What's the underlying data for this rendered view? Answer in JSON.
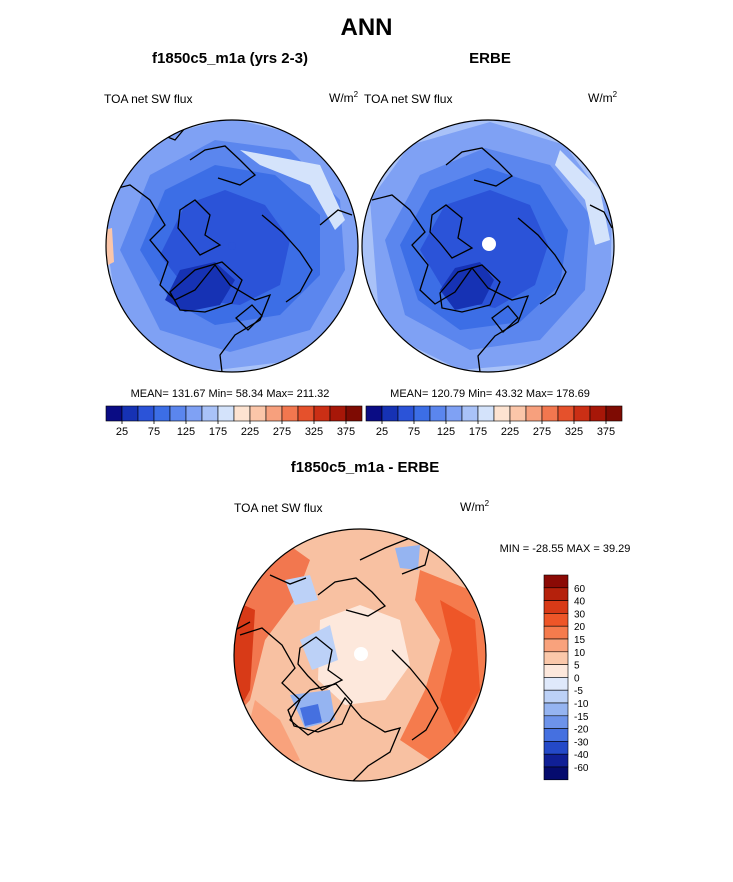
{
  "title": "ANN",
  "panels": [
    {
      "id": "model",
      "title": "f1850c5_m1a (yrs 2-3)",
      "left_label": "TOA net SW flux",
      "units_base": "W/m",
      "units_exp": "2",
      "stats": "MEAN= 131.67  Min=  58.34  Max= 211.32"
    },
    {
      "id": "obs",
      "title": "ERBE",
      "left_label": "TOA net SW flux",
      "units_base": "W/m",
      "units_exp": "2",
      "stats": "MEAN= 120.79  Min=  43.32  Max= 178.69"
    },
    {
      "id": "diff",
      "title": "f1850c5_m1a - ERBE",
      "left_label": "TOA net SW flux",
      "units_base": "W/m",
      "units_exp": "2",
      "stats": "MIN = -28.55 MAX =  39.29"
    }
  ],
  "chart_data": [
    {
      "type": "heatmap",
      "projection": "north-polar-stereographic",
      "title": "f1850c5_m1a (yrs 2-3)",
      "variable": "TOA net SW flux",
      "units": "W/m2",
      "mean": 131.67,
      "min": 58.34,
      "max": 211.32,
      "colorbar": {
        "tick_labels": [
          "25",
          "75",
          "125",
          "175",
          "225",
          "275",
          "325",
          "375"
        ],
        "colors": [
          "#0a0c84",
          "#1632b4",
          "#2b53d8",
          "#3c6ee6",
          "#5b86ee",
          "#7fa1f4",
          "#a9c2f8",
          "#d4e3fb",
          "#fde3d1",
          "#fbc6a9",
          "#f7a07d",
          "#f2774f",
          "#e5512c",
          "#cb2f15",
          "#a71708",
          "#7e0b03"
        ]
      }
    },
    {
      "type": "heatmap",
      "projection": "north-polar-stereographic",
      "title": "ERBE",
      "variable": "TOA net SW flux",
      "units": "W/m2",
      "mean": 120.79,
      "min": 43.32,
      "max": 178.69,
      "colorbar": {
        "tick_labels": [
          "25",
          "75",
          "125",
          "175",
          "225",
          "275",
          "325",
          "375"
        ],
        "colors": [
          "#0a0c84",
          "#1632b4",
          "#2b53d8",
          "#3c6ee6",
          "#5b86ee",
          "#7fa1f4",
          "#a9c2f8",
          "#d4e3fb",
          "#fde3d1",
          "#fbc6a9",
          "#f7a07d",
          "#f2774f",
          "#e5512c",
          "#cb2f15",
          "#a71708",
          "#7e0b03"
        ]
      }
    },
    {
      "type": "heatmap",
      "projection": "north-polar-stereographic",
      "title": "f1850c5_m1a - ERBE",
      "variable": "TOA net SW flux",
      "units": "W/m2",
      "min": -28.55,
      "max": 39.29,
      "colorbar": {
        "tick_labels": [
          "60",
          "40",
          "30",
          "20",
          "15",
          "10",
          "5",
          "0",
          "-5",
          "-10",
          "-15",
          "-20",
          "-30",
          "-40",
          "-60"
        ],
        "colors": [
          "#8b0a05",
          "#b5210c",
          "#d83a17",
          "#ee5628",
          "#f57b4d",
          "#f9a27c",
          "#fbc8aa",
          "#fde8dc",
          "#dfe9fb",
          "#bcd1f7",
          "#95b4f1",
          "#6d93ea",
          "#4570e0",
          "#2449c8",
          "#101f96",
          "#050b6e"
        ]
      }
    }
  ],
  "colors": {
    "land_outline": "#000000",
    "diff_background": "#f8c1a2"
  }
}
